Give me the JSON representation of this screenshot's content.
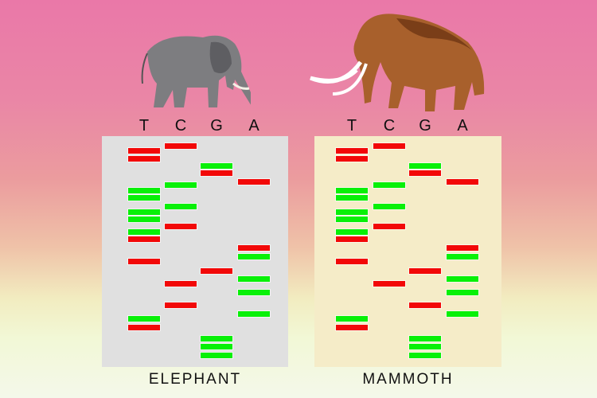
{
  "lane_letters": [
    "T",
    "C",
    "G",
    "A"
  ],
  "colors": {
    "red": "#f20808",
    "green": "#08f008",
    "elephant_gel": "#e0e0e0",
    "mammoth_gel": "#f5ecc8"
  },
  "elephant": {
    "label": "ELEPHANT",
    "image": "elephant-illustration",
    "lanes": {
      "T": [
        "red",
        "red",
        "green",
        "green",
        "green",
        "green",
        "green",
        "red",
        "red",
        "green",
        "red"
      ],
      "C": [
        "red",
        "green",
        "green",
        "red",
        "red",
        "red"
      ],
      "G": [
        "green",
        "red",
        "red",
        "green",
        "green",
        "green"
      ],
      "A": [
        "red",
        "red",
        "green",
        "green",
        "green",
        "green"
      ]
    }
  },
  "mammoth": {
    "label": "MAMMOTH",
    "image": "woolly-mammoth-illustration",
    "lanes": {
      "T": [
        "red",
        "red",
        "green",
        "green",
        "green",
        "green",
        "green",
        "red",
        "red",
        "green",
        "red"
      ],
      "C": [
        "red",
        "green",
        "green",
        "red",
        "red"
      ],
      "G": [
        "green",
        "red",
        "red",
        "red",
        "green",
        "green",
        "green"
      ],
      "A": [
        "red",
        "red",
        "green",
        "green",
        "green",
        "green"
      ]
    }
  }
}
